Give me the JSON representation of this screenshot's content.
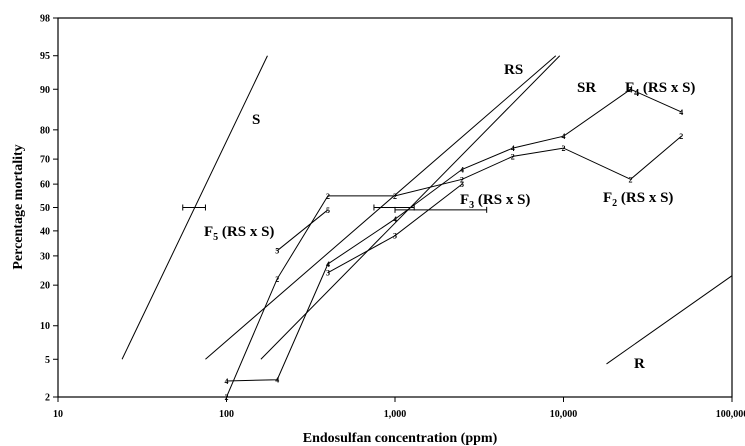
{
  "chart_data": {
    "type": "line",
    "title": "",
    "xlabel": "Endosulfan concentration (ppm)",
    "ylabel": "Percentage mortality",
    "x_scale": "log",
    "y_scale": "probit",
    "xlim": [
      10,
      100000
    ],
    "ylim": [
      2,
      98
    ],
    "grid": false,
    "x_ticks": [
      10,
      100,
      1000,
      10000,
      100000
    ],
    "x_tick_labels": [
      "10",
      "100",
      "1,000",
      "10,000",
      "100,000"
    ],
    "y_ticks": [
      2,
      5,
      10,
      20,
      30,
      40,
      50,
      60,
      70,
      80,
      90,
      95,
      98
    ],
    "y_tick_labels": [
      "2",
      "5",
      "10",
      "20",
      "30",
      "40",
      "50",
      "60",
      "70",
      "80",
      "90",
      "95",
      "98"
    ],
    "regression_lines": [
      {
        "label": "S",
        "x": [
          24,
          175
        ],
        "y": [
          5,
          95
        ]
      },
      {
        "label": "RS",
        "x": [
          75,
          9000
        ],
        "y": [
          5,
          95
        ]
      },
      {
        "label": "SR",
        "x": [
          160,
          9500
        ],
        "y": [
          5,
          95
        ]
      },
      {
        "label": "R",
        "x": [
          18000,
          100000
        ],
        "y": [
          4.5,
          23
        ]
      }
    ],
    "series": [
      {
        "name": "F₂ (RS x S)",
        "label_main": "F",
        "label_sub": "2",
        "label_rest": " (RS x S)",
        "marker": "2",
        "x": [
          100,
          200,
          400,
          1000,
          2500,
          5000,
          10000,
          25000,
          50000
        ],
        "y": [
          2,
          22,
          55,
          55,
          62,
          71,
          74,
          62,
          78
        ]
      },
      {
        "name": "F₃ (RS x S)",
        "label_main": "F",
        "label_sub": "3",
        "label_rest": " (RS x S)",
        "marker": "3",
        "x": [
          400,
          1000,
          2500
        ],
        "y": [
          24,
          38,
          60
        ]
      },
      {
        "name": "F₄ (RS x S)",
        "label_main": "F",
        "label_sub": "4",
        "label_rest": " (RS x S)",
        "marker": "4",
        "x": [
          100,
          200,
          400,
          1000,
          2500,
          5000,
          10000,
          25000,
          50000
        ],
        "y": [
          3,
          3.1,
          27,
          45,
          66,
          74,
          78,
          90,
          85
        ]
      },
      {
        "name": "F₅ (RS x S)",
        "label_main": "F",
        "label_sub": "5",
        "label_rest": " (RS x S)",
        "marker": "5",
        "x": [
          200,
          400
        ],
        "y": [
          32,
          49
        ]
      }
    ],
    "error_bars": [
      {
        "y": 50,
        "x_low": 55,
        "x_high": 75
      },
      {
        "y": 50,
        "x_low": 750,
        "x_high": 1300
      },
      {
        "y": 49,
        "x_low": 1000,
        "x_high": 3500
      }
    ]
  }
}
